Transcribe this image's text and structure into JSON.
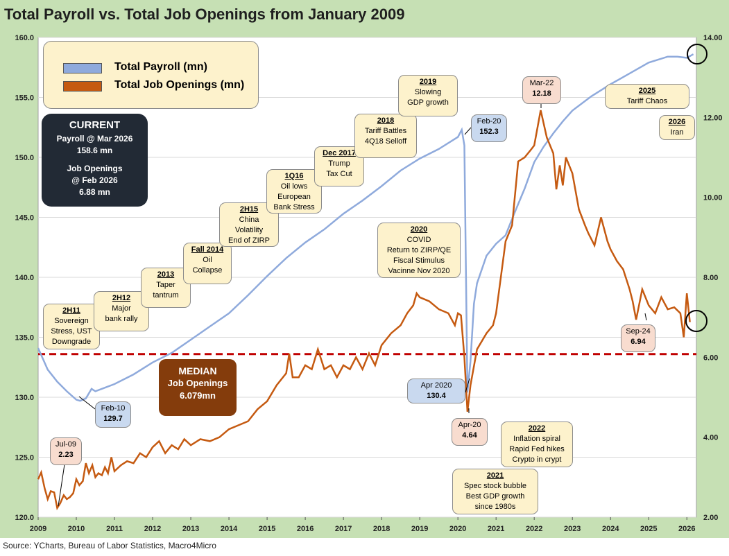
{
  "title": "Total Payroll vs. Total Job Openings from January 2009",
  "source": "Source: YCharts, Bureau of Labor Statistics, Macro4Micro",
  "legend": {
    "payroll": "Total Payroll (mn)",
    "openings": "Total Job Openings (mn)"
  },
  "colors": {
    "payroll": "#8faadc",
    "openings": "#c55a11",
    "median": "#c00000",
    "grid": "#d9d9d9"
  },
  "current": {
    "heading": "CURRENT",
    "payroll_label": "Payroll @ Mar 2026",
    "payroll_value": "158.6 mn",
    "openings_label1": "Job Openings",
    "openings_label2": "@ Feb 2026",
    "openings_value": "6.88 mn"
  },
  "median": {
    "heading": "MEDIAN",
    "label": "Job Openings",
    "value": "6.079mn"
  },
  "callouts": {
    "jul09": [
      "Jul-09",
      "2.23"
    ],
    "feb10": [
      "Feb-10",
      "129.7"
    ],
    "feb20": [
      "Feb-20",
      "152.3"
    ],
    "apr2020": [
      "Apr 2020",
      "130.4"
    ],
    "apr20": [
      "Apr-20",
      "4.64"
    ],
    "mar22": [
      "Mar-22",
      "12.18"
    ],
    "sep24": [
      "Sep-24",
      "6.94"
    ]
  },
  "events": {
    "e2h11": {
      "head": "2H11",
      "lines": [
        "Sovereign",
        "Stress, UST",
        "Downgrade"
      ]
    },
    "e2h12": {
      "head": "2H12",
      "lines": [
        "Major",
        "bank rally"
      ]
    },
    "e2013": {
      "head": "2013",
      "lines": [
        "Taper",
        "tantrum"
      ]
    },
    "efall2014": {
      "head": "Fall 2014",
      "lines": [
        "Oil",
        "Collapse"
      ]
    },
    "e2h15": {
      "head": "2H15",
      "lines": [
        "China",
        "Volatility",
        "End of ZIRP"
      ]
    },
    "e1q16": {
      "head": "1Q16",
      "lines": [
        "Oil lows",
        "European",
        "Bank Stress"
      ]
    },
    "edec2017": {
      "head": "Dec 2017",
      "lines": [
        "Trump",
        "Tax Cut"
      ]
    },
    "e2018": {
      "head": "2018",
      "lines": [
        "Tariff Battles",
        "4Q18 Selloff"
      ]
    },
    "e2019": {
      "head": "2019",
      "lines": [
        "Slowing",
        "GDP growth"
      ]
    },
    "e2020": {
      "head": "2020",
      "lines": [
        "COVID",
        "Return to ZIRP/QE",
        "Fiscal Stimulus",
        "Vacinne  Nov 2020"
      ]
    },
    "e2021": {
      "head": "2021",
      "lines": [
        "Spec stock bubble",
        "Best GDP growth",
        "since 1980s"
      ]
    },
    "e2022": {
      "head": "2022",
      "lines": [
        "Inflation spiral",
        "Rapid Fed hikes",
        "Crypto in crypt"
      ]
    },
    "e2025": {
      "head": "2025",
      "lines": [
        "Tariff Chaos"
      ]
    },
    "e2026": {
      "head": "2026",
      "lines": [
        "Iran"
      ]
    }
  },
  "chart_data": {
    "type": "line",
    "title": "Total Payroll vs. Total Job Openings from January 2009",
    "x_range": [
      2009.0,
      2026.25
    ],
    "x_ticks": [
      "2009",
      "2010",
      "2011",
      "2012",
      "2013",
      "2014",
      "2015",
      "2016",
      "2017",
      "2018",
      "2019",
      "2020",
      "2021",
      "2022",
      "2023",
      "2024",
      "2025",
      "2026"
    ],
    "y_left": {
      "label": "Total Payroll (mn)",
      "range": [
        120,
        160
      ],
      "ticks": [
        "120.0",
        "125.0",
        "130.0",
        "135.0",
        "140.0",
        "145.0",
        "150.0",
        "155.0",
        "160.0"
      ]
    },
    "y_right": {
      "label": "Total Job Openings (mn)",
      "range": [
        2,
        14
      ],
      "ticks": [
        "2.00",
        "4.00",
        "6.00",
        "8.00",
        "10.00",
        "12.00",
        "14.00"
      ]
    },
    "median_openings": 6.079,
    "series": [
      {
        "name": "Total Payroll (mn)",
        "axis": "left",
        "points": [
          [
            2009.0,
            134.1
          ],
          [
            2009.25,
            132.3
          ],
          [
            2009.5,
            131.3
          ],
          [
            2009.75,
            130.5
          ],
          [
            2010.0,
            129.8
          ],
          [
            2010.1,
            129.7
          ],
          [
            2010.25,
            129.9
          ],
          [
            2010.4,
            130.7
          ],
          [
            2010.5,
            130.5
          ],
          [
            2010.75,
            130.8
          ],
          [
            2011.0,
            131.1
          ],
          [
            2011.5,
            131.9
          ],
          [
            2012.0,
            132.9
          ],
          [
            2012.5,
            133.7
          ],
          [
            2013.0,
            134.8
          ],
          [
            2013.5,
            135.9
          ],
          [
            2014.0,
            137.0
          ],
          [
            2014.5,
            138.5
          ],
          [
            2015.0,
            140.1
          ],
          [
            2015.5,
            141.6
          ],
          [
            2016.0,
            142.9
          ],
          [
            2016.5,
            144.0
          ],
          [
            2017.0,
            145.3
          ],
          [
            2017.5,
            146.4
          ],
          [
            2018.0,
            147.6
          ],
          [
            2018.5,
            148.9
          ],
          [
            2019.0,
            149.9
          ],
          [
            2019.5,
            150.7
          ],
          [
            2020.0,
            151.7
          ],
          [
            2020.1,
            152.3
          ],
          [
            2020.17,
            151.0
          ],
          [
            2020.25,
            130.4
          ],
          [
            2020.33,
            133.0
          ],
          [
            2020.42,
            137.8
          ],
          [
            2020.5,
            139.5
          ],
          [
            2020.75,
            141.8
          ],
          [
            2021.0,
            142.8
          ],
          [
            2021.25,
            143.5
          ],
          [
            2021.5,
            145.5
          ],
          [
            2021.75,
            147.4
          ],
          [
            2022.0,
            149.6
          ],
          [
            2022.25,
            150.9
          ],
          [
            2022.5,
            152.0
          ],
          [
            2022.75,
            153.0
          ],
          [
            2023.0,
            153.9
          ],
          [
            2023.5,
            155.1
          ],
          [
            2024.0,
            156.1
          ],
          [
            2024.5,
            157.0
          ],
          [
            2025.0,
            157.9
          ],
          [
            2025.5,
            158.4
          ],
          [
            2025.75,
            158.4
          ],
          [
            2026.0,
            158.3
          ],
          [
            2026.17,
            158.6
          ]
        ]
      },
      {
        "name": "Total Job Openings (mn)",
        "axis": "right",
        "points": [
          [
            2009.0,
            2.95
          ],
          [
            2009.08,
            3.12
          ],
          [
            2009.17,
            2.72
          ],
          [
            2009.25,
            2.45
          ],
          [
            2009.33,
            2.65
          ],
          [
            2009.42,
            2.62
          ],
          [
            2009.5,
            2.23
          ],
          [
            2009.58,
            2.35
          ],
          [
            2009.67,
            2.55
          ],
          [
            2009.75,
            2.45
          ],
          [
            2009.83,
            2.5
          ],
          [
            2009.92,
            2.6
          ],
          [
            2010.0,
            2.95
          ],
          [
            2010.08,
            2.8
          ],
          [
            2010.17,
            2.9
          ],
          [
            2010.25,
            3.35
          ],
          [
            2010.33,
            3.1
          ],
          [
            2010.42,
            3.3
          ],
          [
            2010.5,
            3.0
          ],
          [
            2010.58,
            3.1
          ],
          [
            2010.67,
            3.05
          ],
          [
            2010.75,
            3.25
          ],
          [
            2010.83,
            3.1
          ],
          [
            2010.92,
            3.5
          ],
          [
            2011.0,
            3.15
          ],
          [
            2011.17,
            3.3
          ],
          [
            2011.33,
            3.4
          ],
          [
            2011.5,
            3.35
          ],
          [
            2011.67,
            3.6
          ],
          [
            2011.83,
            3.5
          ],
          [
            2012.0,
            3.75
          ],
          [
            2012.17,
            3.9
          ],
          [
            2012.33,
            3.6
          ],
          [
            2012.5,
            3.8
          ],
          [
            2012.67,
            3.7
          ],
          [
            2012.83,
            3.95
          ],
          [
            2013.0,
            3.8
          ],
          [
            2013.25,
            3.95
          ],
          [
            2013.5,
            3.9
          ],
          [
            2013.75,
            4.0
          ],
          [
            2014.0,
            4.2
          ],
          [
            2014.25,
            4.3
          ],
          [
            2014.5,
            4.4
          ],
          [
            2014.75,
            4.7
          ],
          [
            2015.0,
            4.9
          ],
          [
            2015.25,
            5.3
          ],
          [
            2015.5,
            5.6
          ],
          [
            2015.58,
            6.09
          ],
          [
            2015.67,
            5.5
          ],
          [
            2015.83,
            5.5
          ],
          [
            2016.0,
            5.8
          ],
          [
            2016.17,
            5.7
          ],
          [
            2016.33,
            6.2
          ],
          [
            2016.5,
            5.7
          ],
          [
            2016.67,
            5.8
          ],
          [
            2016.83,
            5.5
          ],
          [
            2017.0,
            5.8
          ],
          [
            2017.17,
            5.7
          ],
          [
            2017.33,
            6.0
          ],
          [
            2017.5,
            5.7
          ],
          [
            2017.67,
            6.1
          ],
          [
            2017.83,
            5.8
          ],
          [
            2018.0,
            6.3
          ],
          [
            2018.25,
            6.6
          ],
          [
            2018.5,
            6.8
          ],
          [
            2018.67,
            7.1
          ],
          [
            2018.83,
            7.3
          ],
          [
            2018.92,
            7.6
          ],
          [
            2019.0,
            7.5
          ],
          [
            2019.25,
            7.4
          ],
          [
            2019.5,
            7.2
          ],
          [
            2019.75,
            7.1
          ],
          [
            2019.92,
            6.8
          ],
          [
            2020.0,
            7.1
          ],
          [
            2020.08,
            7.05
          ],
          [
            2020.17,
            6.0
          ],
          [
            2020.25,
            4.64
          ],
          [
            2020.33,
            5.3
          ],
          [
            2020.5,
            6.2
          ],
          [
            2020.75,
            6.6
          ],
          [
            2020.92,
            6.8
          ],
          [
            2021.0,
            7.1
          ],
          [
            2021.25,
            8.9
          ],
          [
            2021.42,
            9.3
          ],
          [
            2021.58,
            10.9
          ],
          [
            2021.75,
            11.0
          ],
          [
            2021.92,
            11.2
          ],
          [
            2022.0,
            11.3
          ],
          [
            2022.17,
            12.18
          ],
          [
            2022.33,
            11.5
          ],
          [
            2022.5,
            11.1
          ],
          [
            2022.58,
            10.2
          ],
          [
            2022.67,
            10.8
          ],
          [
            2022.75,
            10.3
          ],
          [
            2022.83,
            11.0
          ],
          [
            2023.0,
            10.6
          ],
          [
            2023.17,
            9.7
          ],
          [
            2023.33,
            9.3
          ],
          [
            2023.42,
            9.1
          ],
          [
            2023.58,
            8.8
          ],
          [
            2023.75,
            9.5
          ],
          [
            2023.92,
            8.9
          ],
          [
            2024.0,
            8.7
          ],
          [
            2024.17,
            8.4
          ],
          [
            2024.33,
            8.2
          ],
          [
            2024.5,
            7.7
          ],
          [
            2024.58,
            7.4
          ],
          [
            2024.67,
            6.94
          ],
          [
            2024.83,
            7.7
          ],
          [
            2025.0,
            7.3
          ],
          [
            2025.17,
            7.1
          ],
          [
            2025.33,
            7.5
          ],
          [
            2025.5,
            7.2
          ],
          [
            2025.67,
            7.25
          ],
          [
            2025.83,
            7.1
          ],
          [
            2025.92,
            6.5
          ],
          [
            2026.0,
            7.6
          ],
          [
            2026.08,
            6.88
          ]
        ]
      }
    ]
  }
}
